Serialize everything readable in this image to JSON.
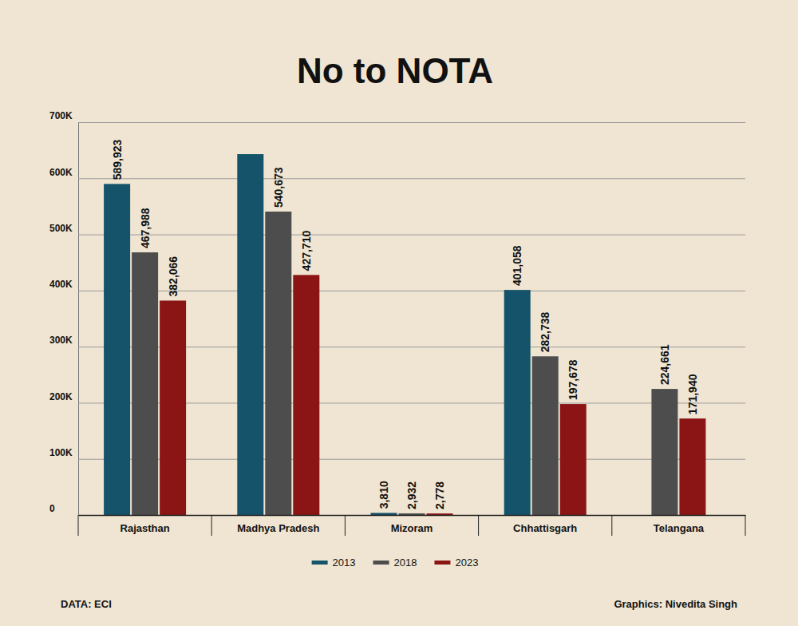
{
  "chart_data": {
    "type": "bar",
    "title": "No to NOTA",
    "categories": [
      "Rajasthan",
      "Madhya Pradesh",
      "Mizoram",
      "Chhattisgarh",
      "Telangana"
    ],
    "series": [
      {
        "name": "2013",
        "color": "#145369",
        "values": [
          589923,
          643000,
          3810,
          401058,
          null
        ],
        "value_labels": [
          "589,923",
          null,
          "3,810",
          "401,058",
          null
        ]
      },
      {
        "name": "2018",
        "color": "#4d4d4d",
        "values": [
          467988,
          540673,
          2932,
          282738,
          224661
        ],
        "value_labels": [
          "467,988",
          "540,673",
          "2,932",
          "282,738",
          "224,661"
        ]
      },
      {
        "name": "2023",
        "color": "#8b1414",
        "values": [
          382066,
          427710,
          2778,
          197678,
          171940
        ],
        "value_labels": [
          "382,066",
          "427,710",
          "2,778",
          "197,678",
          "171,940"
        ]
      }
    ],
    "ylim": [
      0,
      700000
    ],
    "yticks": [
      0,
      {
        "value": 100000,
        "label": "100K"
      },
      {
        "value": 200000,
        "label": "200K"
      },
      {
        "value": 300000,
        "label": "300K"
      },
      {
        "value": 400000,
        "label": "400K"
      },
      {
        "value": 500000,
        "label": "500K"
      },
      {
        "value": 600000,
        "label": "600K"
      },
      {
        "value": 700000,
        "label": "700K"
      }
    ],
    "grid": true,
    "data_labels": true,
    "legend": "bottom",
    "annotations": [
      "DATA: ECI",
      "Graphics: Nivedita Singh"
    ]
  }
}
